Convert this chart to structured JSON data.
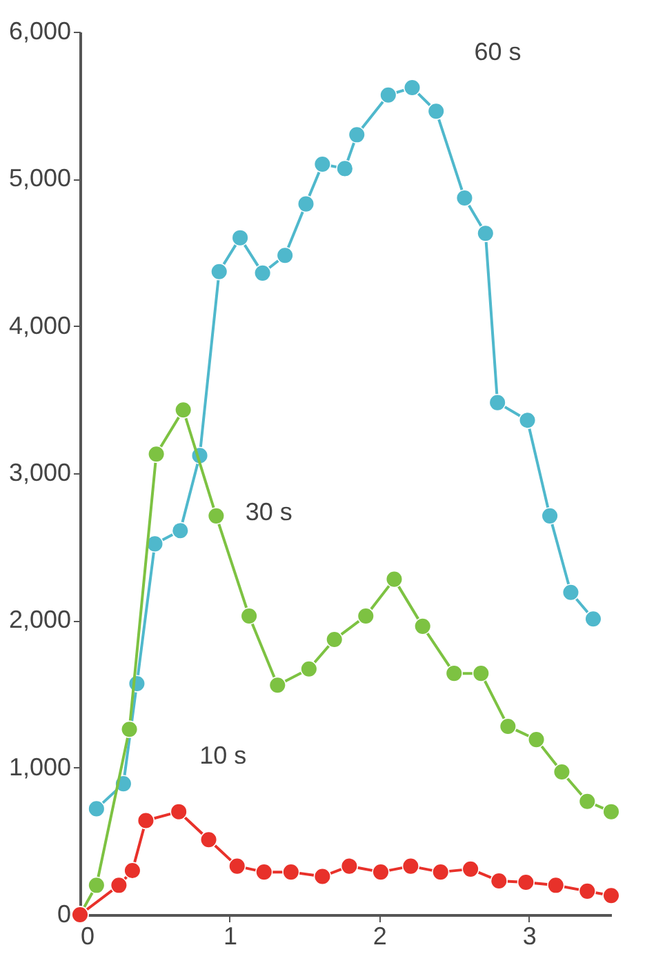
{
  "chart_data": {
    "type": "line",
    "marker": "circle",
    "line_style": "solid",
    "grid": false,
    "legend": false,
    "xlim": [
      0,
      3.55
    ],
    "xticks": [
      0,
      1,
      2,
      3
    ],
    "ylim": [
      0,
      6000
    ],
    "yticks": [
      0,
      {
        "value": 1000,
        "label": "1,000"
      },
      {
        "value": 2000,
        "label": "2,000"
      },
      {
        "value": 3000,
        "label": "3,000"
      },
      {
        "value": 4000,
        "label": "4,000"
      },
      {
        "value": 5000,
        "label": "5,000"
      },
      {
        "value": 6000,
        "label": "6,000"
      }
    ],
    "series": [
      {
        "name": "60 s",
        "color": "#4fb8cc",
        "x": [
          0.11,
          0.29,
          0.38,
          0.5,
          0.67,
          0.8,
          0.93,
          1.07,
          1.22,
          1.37,
          1.51,
          1.62,
          1.77,
          1.85,
          2.06,
          2.22,
          2.38,
          2.57,
          2.71,
          2.79,
          2.99,
          3.14,
          3.28,
          3.43
        ],
        "values": [
          720,
          890,
          1570,
          2520,
          2610,
          3120,
          4370,
          4600,
          4360,
          4480,
          4830,
          5100,
          5070,
          5300,
          5570,
          5620,
          5460,
          4870,
          4630,
          3480,
          3360,
          2710,
          2190,
          2010
        ]
      },
      {
        "name": "30 s",
        "color": "#7dc242",
        "x": [
          0,
          0.11,
          0.33,
          0.51,
          0.69,
          0.91,
          1.13,
          1.32,
          1.53,
          1.7,
          1.91,
          2.1,
          2.29,
          2.5,
          2.68,
          2.86,
          3.05,
          3.22,
          3.39,
          3.55
        ],
        "values": [
          0,
          200,
          1260,
          3130,
          3430,
          2710,
          2030,
          1560,
          1670,
          1870,
          2030,
          2280,
          1960,
          1640,
          1640,
          1280,
          1190,
          970,
          770,
          700
        ]
      },
      {
        "name": "10 s",
        "color": "#e8312a",
        "x": [
          0,
          0.26,
          0.35,
          0.44,
          0.66,
          0.86,
          1.05,
          1.23,
          1.41,
          1.62,
          1.8,
          2.01,
          2.21,
          2.41,
          2.61,
          2.8,
          2.98,
          3.18,
          3.39,
          3.55
        ],
        "values": [
          0,
          200,
          300,
          640,
          700,
          510,
          330,
          290,
          290,
          260,
          330,
          290,
          330,
          290,
          310,
          230,
          220,
          200,
          160,
          130
        ]
      }
    ]
  }
}
